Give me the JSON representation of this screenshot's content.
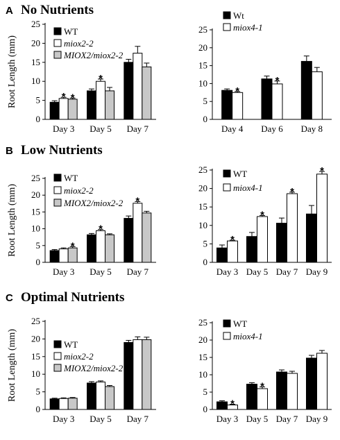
{
  "panels": [
    {
      "letter": "A",
      "title": "No Nutrients"
    },
    {
      "letter": "B",
      "title": "Low Nutrients"
    },
    {
      "letter": "C",
      "title": "Optimal Nutrients"
    }
  ],
  "colors": {
    "WT": "#000000",
    "mutant": "#ffffff",
    "complemented": "#c8c8c8"
  },
  "chart_data": [
    {
      "id": "A-left",
      "type": "bar",
      "ylabel": "Root Length (mm)",
      "ylim": [
        0,
        25
      ],
      "yticks": [
        0,
        5,
        10,
        15,
        20,
        25
      ],
      "categories": [
        "Day 3",
        "Day 5",
        "Day 7"
      ],
      "series": [
        {
          "name": "WT",
          "italic": false,
          "color": "#000000",
          "values": [
            4.5,
            7.5,
            15.0
          ],
          "errors": [
            0.4,
            0.5,
            0.8
          ],
          "stars": [
            false,
            false,
            false
          ]
        },
        {
          "name": "miox2-2",
          "italic": true,
          "color": "#ffffff",
          "values": [
            5.5,
            10.0,
            17.4
          ],
          "errors": [
            0.3,
            0.6,
            1.8
          ],
          "stars": [
            true,
            true,
            false
          ]
        },
        {
          "name": "MIOX2/miox2-2",
          "italic": true,
          "color": "#c8c8c8",
          "values": [
            5.3,
            7.5,
            13.8
          ],
          "errors": [
            0.3,
            0.9,
            1.0
          ],
          "stars": [
            true,
            false,
            false
          ]
        }
      ],
      "legend_position": "top-left"
    },
    {
      "id": "A-right",
      "type": "bar",
      "ylabel": "",
      "ylim": [
        0,
        25
      ],
      "yticks": [
        0,
        5,
        10,
        15,
        20,
        25
      ],
      "categories": [
        "Day 4",
        "Day 6",
        "Day 8"
      ],
      "series": [
        {
          "name": "Wt",
          "italic": false,
          "color": "#000000",
          "values": [
            8.1,
            11.3,
            16.2
          ],
          "errors": [
            0.4,
            0.8,
            1.5
          ],
          "stars": [
            false,
            false,
            false
          ]
        },
        {
          "name": "miox4-1",
          "italic": true,
          "color": "#ffffff",
          "values": [
            7.5,
            9.9,
            13.3
          ],
          "errors": [
            0.3,
            0.8,
            1.2
          ],
          "stars": [
            true,
            true,
            false
          ]
        }
      ],
      "legend_position": "top-left"
    },
    {
      "id": "B-left",
      "type": "bar",
      "ylabel": "Root Length (mm)",
      "ylim": [
        0,
        25
      ],
      "yticks": [
        0,
        5,
        10,
        15,
        20,
        25
      ],
      "categories": [
        "Day 3",
        "Day 5",
        "Day 7"
      ],
      "series": [
        {
          "name": "WT",
          "italic": false,
          "color": "#000000",
          "values": [
            3.5,
            8.2,
            13.1
          ],
          "errors": [
            0.3,
            0.4,
            0.7
          ],
          "stars": [
            false,
            false,
            false
          ]
        },
        {
          "name": "miox2-2",
          "italic": true,
          "color": "#ffffff",
          "values": [
            4.0,
            9.4,
            17.6
          ],
          "errors": [
            0.3,
            0.4,
            0.5
          ],
          "stars": [
            false,
            true,
            true
          ]
        },
        {
          "name": "MIOX2/miox2-2",
          "italic": true,
          "color": "#c8c8c8",
          "values": [
            4.3,
            8.2,
            14.7
          ],
          "errors": [
            0.4,
            0.3,
            0.5
          ],
          "stars": [
            true,
            false,
            false
          ]
        }
      ],
      "legend_position": "top-left"
    },
    {
      "id": "B-right",
      "type": "bar",
      "ylabel": "",
      "ylim": [
        0,
        25
      ],
      "yticks": [
        0,
        5,
        10,
        15,
        20,
        25
      ],
      "categories": [
        "Day 3",
        "Day 5",
        "Day 7",
        "Day 9"
      ],
      "series": [
        {
          "name": "WT",
          "italic": false,
          "color": "#000000",
          "values": [
            3.9,
            7.0,
            10.6,
            13.1
          ],
          "errors": [
            0.8,
            1.1,
            1.4,
            2.3
          ],
          "stars": [
            false,
            false,
            false,
            false
          ]
        },
        {
          "name": "miox4-1",
          "italic": true,
          "color": "#ffffff",
          "values": [
            5.8,
            12.4,
            18.6,
            23.9
          ],
          "errors": [
            0.2,
            0.3,
            0.4,
            0.7
          ],
          "stars": [
            true,
            true,
            true,
            true
          ]
        }
      ],
      "legend_position": "top-left"
    },
    {
      "id": "C-left",
      "type": "bar",
      "ylabel": "Root Length (mm)",
      "ylim": [
        0,
        25
      ],
      "yticks": [
        0,
        5,
        10,
        15,
        20,
        25
      ],
      "categories": [
        "Day 3",
        "Day 5",
        "Day 7"
      ],
      "series": [
        {
          "name": "WT",
          "italic": false,
          "color": "#000000",
          "values": [
            3.0,
            7.5,
            19.0
          ],
          "errors": [
            0.2,
            0.4,
            0.6
          ],
          "stars": [
            false,
            false,
            false
          ]
        },
        {
          "name": "miox2-2",
          "italic": true,
          "color": "#ffffff",
          "values": [
            3.1,
            7.8,
            19.8
          ],
          "errors": [
            0.2,
            0.3,
            0.8
          ],
          "stars": [
            false,
            false,
            false
          ]
        },
        {
          "name": "MIOX2/miox2-2",
          "italic": true,
          "color": "#c8c8c8",
          "values": [
            3.2,
            6.5,
            19.8
          ],
          "errors": [
            0.2,
            0.3,
            0.7
          ],
          "stars": [
            false,
            false,
            false
          ]
        }
      ],
      "legend_position": "top-left"
    },
    {
      "id": "C-right",
      "type": "bar",
      "ylabel": "",
      "ylim": [
        0,
        25
      ],
      "yticks": [
        0,
        5,
        10,
        15,
        20,
        25
      ],
      "categories": [
        "Day 3",
        "Day 5",
        "Day 7",
        "Day 9"
      ],
      "series": [
        {
          "name": "WT",
          "italic": false,
          "color": "#000000",
          "values": [
            2.2,
            7.3,
            10.8,
            14.8
          ],
          "errors": [
            0.3,
            0.4,
            0.6,
            0.8
          ],
          "stars": [
            false,
            false,
            false,
            false
          ]
        },
        {
          "name": "miox4-1",
          "italic": true,
          "color": "#ffffff",
          "values": [
            1.3,
            6.0,
            10.4,
            16.2
          ],
          "errors": [
            0.2,
            0.5,
            0.6,
            0.8
          ],
          "stars": [
            true,
            true,
            false,
            false
          ]
        }
      ],
      "legend_position": "top-left"
    }
  ]
}
